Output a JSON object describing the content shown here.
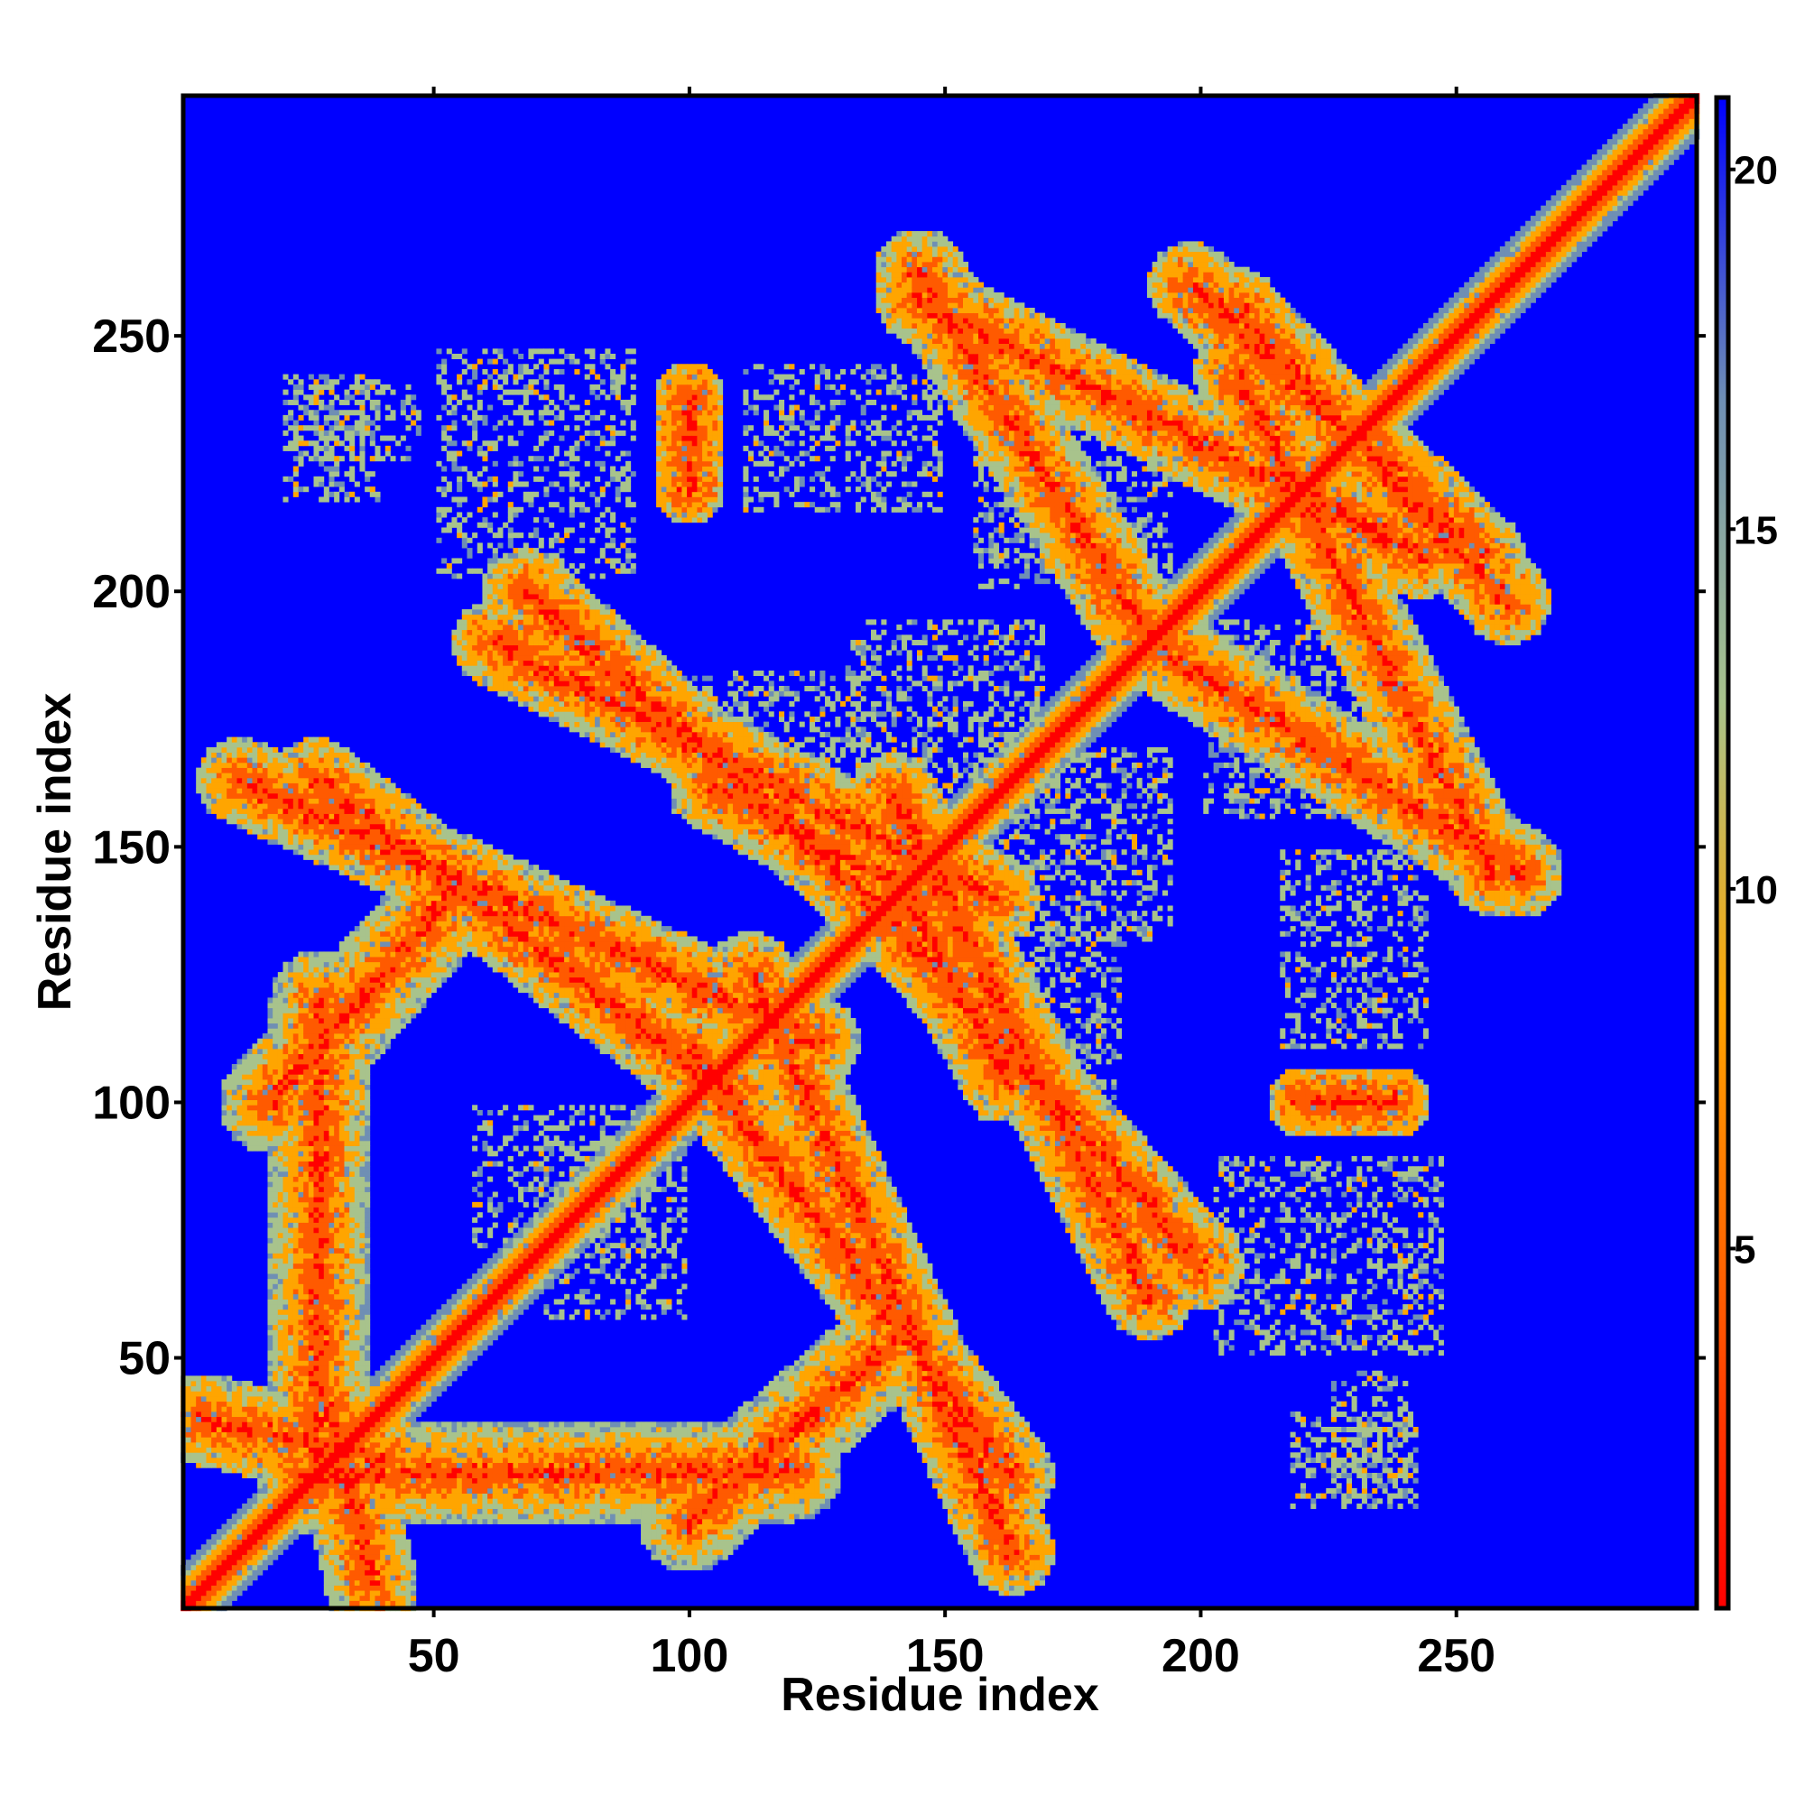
{
  "chart_data": {
    "type": "heatmap",
    "title": "",
    "xlabel": "Residue index",
    "ylabel": "Residue index",
    "xlim": [
      1,
      297
    ],
    "ylim": [
      1,
      297
    ],
    "x_ticks": [
      "50",
      "100",
      "150",
      "200",
      "250"
    ],
    "y_ticks": [
      "50",
      "100",
      "150",
      "200",
      "250"
    ],
    "x_tick_values": [
      50,
      100,
      150,
      200,
      250
    ],
    "y_tick_values": [
      50,
      100,
      150,
      200,
      250
    ],
    "colorbar": {
      "range": [
        0,
        21
      ],
      "ticks": [
        "5",
        "10",
        "15",
        "20"
      ],
      "tick_values": [
        5,
        10,
        15,
        20
      ],
      "colors": [
        "#ff0000",
        "#ff5a00",
        "#ffa500",
        "#a8c38c",
        "#6f8fb4",
        "#0000ff"
      ]
    },
    "grid": false,
    "features": [
      {
        "kind": "diagonal",
        "from": [
          1,
          1
        ],
        "to": [
          297,
          297
        ],
        "distance": 2
      },
      {
        "kind": "antidiagonal_band",
        "from": [
          12,
          163
        ],
        "to": [
          125,
          112
        ],
        "distance": 8.5
      },
      {
        "kind": "antidiagonal_band",
        "from": [
          62,
          190
        ],
        "to": [
          160,
          140
        ],
        "distance": 8.5
      },
      {
        "kind": "antidiagonal_band",
        "from": [
          105,
          162
        ],
        "to": [
          145,
          140
        ],
        "distance": 9
      },
      {
        "kind": "antidiagonal_band",
        "from": [
          100,
          110
        ],
        "to": [
          163,
          27
        ],
        "distance": 8.5
      },
      {
        "kind": "antidiagonal_band",
        "from": [
          140,
          135
        ],
        "to": [
          200,
          68
        ],
        "distance": 8.5
      },
      {
        "kind": "antidiagonal_band",
        "from": [
          145,
          257
        ],
        "to": [
          243,
          207
        ],
        "distance": 8.5
      },
      {
        "kind": "antidiagonal_band",
        "from": [
          198,
          260
        ],
        "to": [
          255,
          207
        ],
        "distance": 8.5
      },
      {
        "kind": "antidiagonal_band",
        "from": [
          190,
          190
        ],
        "to": [
          262,
          145
        ],
        "distance": 9
      },
      {
        "kind": "cross_band",
        "from": [
          18,
          100
        ],
        "to": [
          55,
          142
        ],
        "distance": 10
      },
      {
        "kind": "cross_band",
        "from": [
          25,
          27
        ],
        "to": [
          120,
          28
        ],
        "distance": 10
      },
      {
        "kind": "cross_band",
        "from": [
          100,
          225
        ],
        "to": [
          100,
          235
        ],
        "distance": 7
      },
      {
        "kind": "cross_band",
        "from": [
          220,
          100
        ],
        "to": [
          238,
          100
        ],
        "distance": 7
      },
      {
        "kind": "cross_band",
        "from": [
          5,
          38
        ],
        "to": [
          40,
          30
        ],
        "distance": 9
      },
      {
        "kind": "sparse_patch",
        "center": [
          35,
          233
        ],
        "size": [
          25,
          15
        ]
      },
      {
        "kind": "sparse_patch",
        "center": [
          130,
          230
        ],
        "size": [
          40,
          30
        ]
      },
      {
        "kind": "sparse_patch",
        "center": [
          115,
          170
        ],
        "size": [
          40,
          30
        ]
      },
      {
        "kind": "sparse_patch",
        "center": [
          175,
          150
        ],
        "size": [
          40,
          40
        ]
      },
      {
        "kind": "sparse_patch",
        "center": [
          175,
          220
        ],
        "size": [
          40,
          40
        ]
      },
      {
        "kind": "sparse_patch",
        "center": [
          225,
          70
        ],
        "size": [
          45,
          40
        ]
      },
      {
        "kind": "sparse_patch",
        "center": [
          230,
          30
        ],
        "size": [
          25,
          20
        ]
      },
      {
        "kind": "sparse_patch",
        "center": [
          75,
          85
        ],
        "size": [
          35,
          30
        ]
      }
    ]
  }
}
